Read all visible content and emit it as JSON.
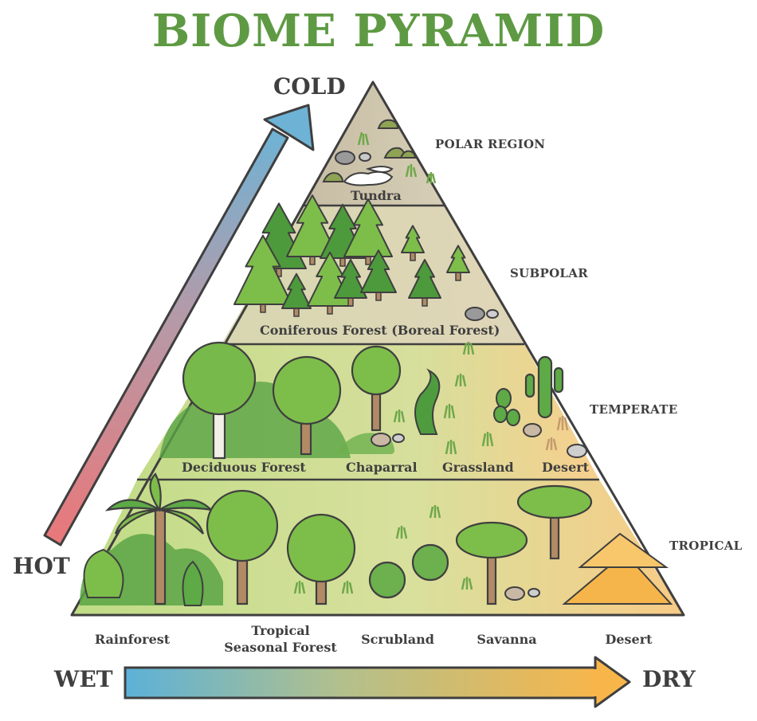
{
  "title": "BIOME PYRAMID",
  "colors": {
    "title": "#5e9a43",
    "outline": "#3f3f3f",
    "hot": "#e9777a",
    "cold": "#6fb4d6",
    "wet": "#5fb2d6",
    "dry": "#f8b64b",
    "tier_polar": "#cfc4ab",
    "tier_subpolar": "#dbd6b4",
    "tier_temperate": "#d7dba2",
    "tier_tropical": "#d4df9b",
    "tree_dark": "#4d9a3c",
    "tree_light": "#7dbe4a",
    "trunk": "#b28a66",
    "rock": "#9a9a9a"
  },
  "axes": {
    "temperature": {
      "low": "HOT",
      "high": "COLD"
    },
    "moisture": {
      "low": "WET",
      "high": "DRY"
    }
  },
  "tiers": [
    {
      "region": "POLAR REGION",
      "biomes": [
        "Tundra"
      ]
    },
    {
      "region": "SUBPOLAR",
      "biomes": [
        "Coniferous Forest (Boreal Forest)"
      ]
    },
    {
      "region": "TEMPERATE",
      "biomes": [
        "Deciduous Forest",
        "Chaparral",
        "Grassland",
        "Desert"
      ]
    },
    {
      "region": "TROPICAL",
      "biomes": [
        "Rainforest",
        "Tropical Seasonal Forest",
        "Scrubland",
        "Savanna",
        "Desert"
      ]
    }
  ],
  "tropical_labels": [
    "Rainforest",
    "Tropical\nSeasonal Forest",
    "Scrubland",
    "Savanna",
    "Desert"
  ]
}
